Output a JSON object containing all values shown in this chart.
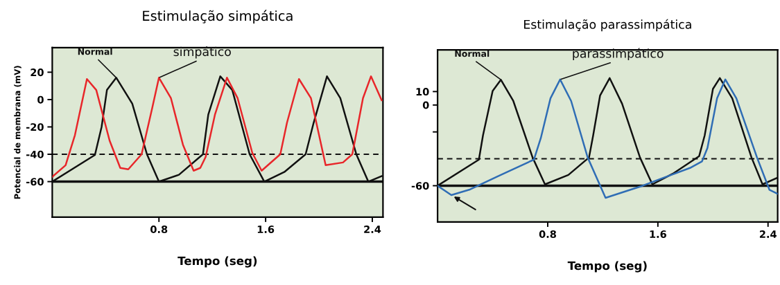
{
  "chart_data": [
    {
      "type": "line",
      "title": "Estimulação simpática",
      "xlabel": "Tempo (seg)",
      "ylabel": "Potencial de membrana (mV)",
      "xlim": [
        0,
        2.48
      ],
      "ylim": [
        -86,
        38
      ],
      "xticks": [
        0.8,
        1.6,
        2.4
      ],
      "yticks": [
        20,
        0,
        -20,
        -40,
        -60
      ],
      "grid": false,
      "legend": false,
      "ref_lines": [
        {
          "axis": "y",
          "value": -40,
          "line_style": "dashed",
          "color": "#111111"
        },
        {
          "axis": "y",
          "value": -60,
          "line_style": "solid",
          "color": "#111111"
        }
      ],
      "series": [
        {
          "name": "Normal",
          "color": "#111111",
          "x": [
            0,
            0.32,
            0.37,
            0.41,
            0.48,
            0.6,
            0.71,
            0.8,
            0.95,
            1.13,
            1.17,
            1.26,
            1.35,
            1.48,
            1.59,
            1.74,
            1.9,
            1.96,
            2.06,
            2.16,
            2.28,
            2.37,
            2.47
          ],
          "values": [
            -60,
            -40.5,
            -20,
            7,
            16,
            -3,
            -40,
            -60,
            -55,
            -40,
            -11,
            17,
            7,
            -40,
            -60,
            -53,
            -40,
            -17,
            17,
            1,
            -40,
            -60,
            -56
          ]
        },
        {
          "name": "simpático",
          "color": "#e8262a",
          "x": [
            0,
            0.1,
            0.17,
            0.26,
            0.33,
            0.43,
            0.51,
            0.57,
            0.67,
            0.75,
            0.8,
            0.89,
            0.98,
            1.06,
            1.11,
            1.15,
            1.22,
            1.31,
            1.39,
            1.5,
            1.57,
            1.71,
            1.76,
            1.85,
            1.94,
            2.05,
            2.18,
            2.25,
            2.33,
            2.39,
            2.47
          ],
          "values": [
            -56.5,
            -48,
            -26,
            15,
            7,
            -30,
            -50,
            -51,
            -40,
            -6,
            16,
            1,
            -33,
            -52,
            -50,
            -42,
            -11,
            16,
            1,
            -39,
            -52,
            -40,
            -17,
            15,
            1,
            -48,
            -46,
            -40,
            1,
            17,
            -0.5
          ]
        }
      ]
    },
    {
      "type": "line",
      "title": "Estimulação parassimpática",
      "xlabel": "Tempo (seg)",
      "xlim": [
        0,
        2.47
      ],
      "ylim": [
        -87,
        41
      ],
      "xticks": [
        0.8,
        1.6,
        2.4
      ],
      "yticks": [
        10,
        0,
        {
          "value": -20,
          "label": null
        },
        -60
      ],
      "grid": false,
      "legend": false,
      "ref_lines": [
        {
          "axis": "y",
          "value": -40,
          "line_style": "dashed",
          "color": "#111111"
        },
        {
          "axis": "y",
          "value": -60,
          "line_style": "solid",
          "color": "#111111"
        }
      ],
      "series": [
        {
          "name": "Normal",
          "color": "#111111",
          "x": [
            0,
            0.3,
            0.33,
            0.4,
            0.46,
            0.55,
            0.69,
            0.78,
            0.95,
            1.1,
            1.13,
            1.18,
            1.25,
            1.34,
            1.47,
            1.56,
            1.71,
            1.9,
            1.94,
            2.0,
            2.05,
            2.14,
            2.28,
            2.36,
            2.47
          ],
          "values": [
            -60,
            -40.6,
            -22.5,
            10.5,
            18.8,
            3,
            -39,
            -59,
            -52,
            -39,
            -22.6,
            7,
            20,
            1,
            -39,
            -59,
            -51,
            -38,
            -22.6,
            12,
            20,
            5,
            -39,
            -59,
            -54
          ]
        },
        {
          "name": "parassimpático",
          "color": "#2f6db5",
          "x": [
            0,
            0.1,
            0.23,
            0.5,
            0.7,
            0.75,
            0.82,
            0.89,
            0.97,
            1.09,
            1.22,
            1.49,
            1.67,
            1.84,
            1.92,
            1.96,
            2.03,
            2.09,
            2.17,
            2.32,
            2.41,
            2.47
          ],
          "values": [
            -60,
            -67,
            -63,
            -50,
            -40.6,
            -24.5,
            5,
            19,
            3,
            -39,
            -69,
            -60,
            -53,
            -46.5,
            -42,
            -32,
            5,
            19,
            5,
            -39,
            -63,
            -66
          ]
        }
      ]
    }
  ]
}
